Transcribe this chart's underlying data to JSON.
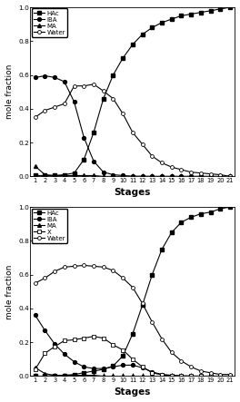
{
  "stages": [
    1,
    2,
    3,
    4,
    5,
    6,
    7,
    8,
    9,
    10,
    11,
    12,
    13,
    14,
    15,
    16,
    17,
    18,
    19,
    20,
    21
  ],
  "top": {
    "HAc": [
      0.005,
      0.005,
      0.005,
      0.01,
      0.02,
      0.1,
      0.26,
      0.46,
      0.6,
      0.7,
      0.78,
      0.84,
      0.88,
      0.91,
      0.93,
      0.95,
      0.96,
      0.97,
      0.98,
      0.99,
      1.0
    ],
    "IBA": [
      0.585,
      0.595,
      0.585,
      0.56,
      0.44,
      0.23,
      0.09,
      0.025,
      0.01,
      0.005,
      0.001,
      0.001,
      0.0,
      0.0,
      0.0,
      0.0,
      0.0,
      0.0,
      0.0,
      0.0,
      0.0
    ],
    "MA": [
      0.06,
      0.01,
      0.005,
      0.005,
      0.005,
      0.005,
      0.005,
      0.0,
      0.0,
      0.0,
      0.0,
      0.0,
      0.0,
      0.0,
      0.0,
      0.0,
      0.0,
      0.0,
      0.0,
      0.0,
      0.0
    ],
    "Water": [
      0.35,
      0.39,
      0.41,
      0.43,
      0.535,
      0.535,
      0.545,
      0.505,
      0.46,
      0.37,
      0.26,
      0.19,
      0.12,
      0.08,
      0.055,
      0.04,
      0.025,
      0.02,
      0.015,
      0.01,
      0.0
    ]
  },
  "bot": {
    "HAc": [
      0.0,
      0.0,
      0.005,
      0.005,
      0.01,
      0.02,
      0.03,
      0.04,
      0.06,
      0.12,
      0.25,
      0.42,
      0.6,
      0.75,
      0.85,
      0.91,
      0.94,
      0.96,
      0.97,
      0.99,
      1.0
    ],
    "IBA": [
      0.36,
      0.27,
      0.19,
      0.13,
      0.085,
      0.055,
      0.045,
      0.045,
      0.055,
      0.065,
      0.065,
      0.05,
      0.025,
      0.01,
      0.005,
      0.002,
      0.001,
      0.0,
      0.0,
      0.0,
      0.0
    ],
    "MA": [
      0.05,
      0.015,
      0.005,
      0.005,
      0.005,
      0.005,
      0.005,
      0.0,
      0.0,
      0.0,
      0.0,
      0.0,
      0.0,
      0.0,
      0.0,
      0.0,
      0.0,
      0.0,
      0.0,
      0.0,
      0.0
    ],
    "X": [
      0.04,
      0.135,
      0.175,
      0.21,
      0.215,
      0.225,
      0.235,
      0.225,
      0.185,
      0.155,
      0.1,
      0.055,
      0.02,
      0.008,
      0.003,
      0.001,
      0.0,
      0.0,
      0.0,
      0.0,
      0.0
    ],
    "Water": [
      0.55,
      0.58,
      0.62,
      0.645,
      0.65,
      0.655,
      0.65,
      0.645,
      0.625,
      0.58,
      0.525,
      0.43,
      0.32,
      0.22,
      0.14,
      0.09,
      0.055,
      0.03,
      0.02,
      0.01,
      0.01
    ]
  },
  "ylabel": "mole fraction",
  "xlabel": "Stages",
  "ylim": [
    0.0,
    1.0
  ],
  "bg_color": "#ffffff",
  "tick_labels": [
    "1",
    "2",
    "3",
    "4",
    "5",
    "6",
    "7",
    "8",
    "9",
    "10",
    "11",
    "12",
    "13",
    "14",
    "15",
    "16",
    "17",
    "18",
    "19",
    "20",
    "21"
  ]
}
